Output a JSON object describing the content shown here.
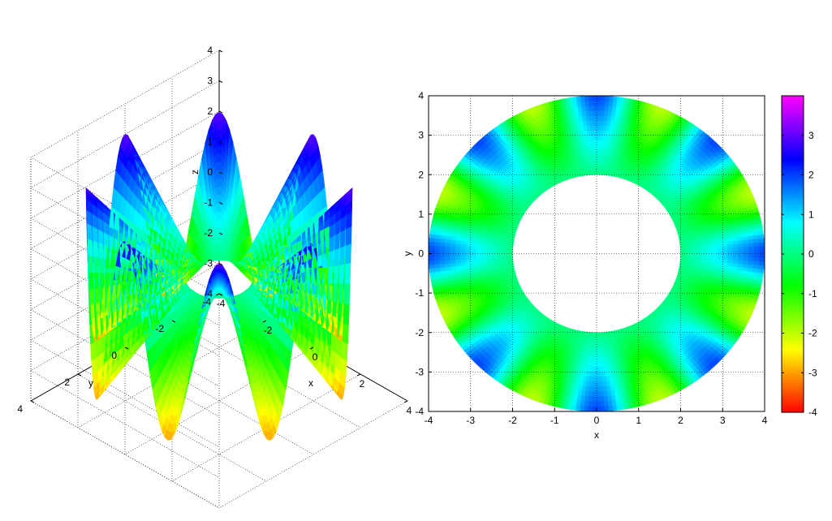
{
  "chart_data": [
    {
      "type": "surface",
      "function": "z = (r - r0) * cos(N * theta)",
      "domain": {
        "r_min": 1.0,
        "r_max": 4.0
      },
      "xlabel": "x",
      "ylabel": "y",
      "zlabel": "z",
      "xlim": [
        -4,
        4
      ],
      "ylim": [
        -4,
        4
      ],
      "zlim": [
        -4,
        4
      ],
      "xticks": [
        "-4",
        "-2",
        "0",
        "2",
        "4"
      ],
      "yticks": [
        "-4",
        "-2",
        "0",
        "2",
        "4"
      ],
      "zticks": [
        "-4",
        "-3",
        "-2",
        "-1",
        "0",
        "1",
        "2",
        "3",
        "4"
      ],
      "grid": true,
      "colormap": "hsv",
      "peak_count": 8
    },
    {
      "type": "heatmap",
      "function": "z = (r - 2) * cos(8 * theta)",
      "domain": {
        "r_min": 2.0,
        "r_max": 4.0
      },
      "xlabel": "x",
      "ylabel": "y",
      "xlim": [
        -4,
        4
      ],
      "ylim": [
        -4,
        4
      ],
      "xticks": [
        "-4",
        "-3",
        "-2",
        "-1",
        "0",
        "1",
        "2",
        "3",
        "4"
      ],
      "yticks": [
        "-4",
        "-3",
        "-2",
        "-1",
        "0",
        "1",
        "2",
        "3",
        "4"
      ],
      "grid": true,
      "colormap": "hsv",
      "colorbar": {
        "range": [
          -4,
          4
        ],
        "ticks": [
          "-4",
          "-3",
          "-2",
          "-1",
          "0",
          "1",
          "2",
          "3"
        ],
        "placement": "right"
      }
    }
  ]
}
